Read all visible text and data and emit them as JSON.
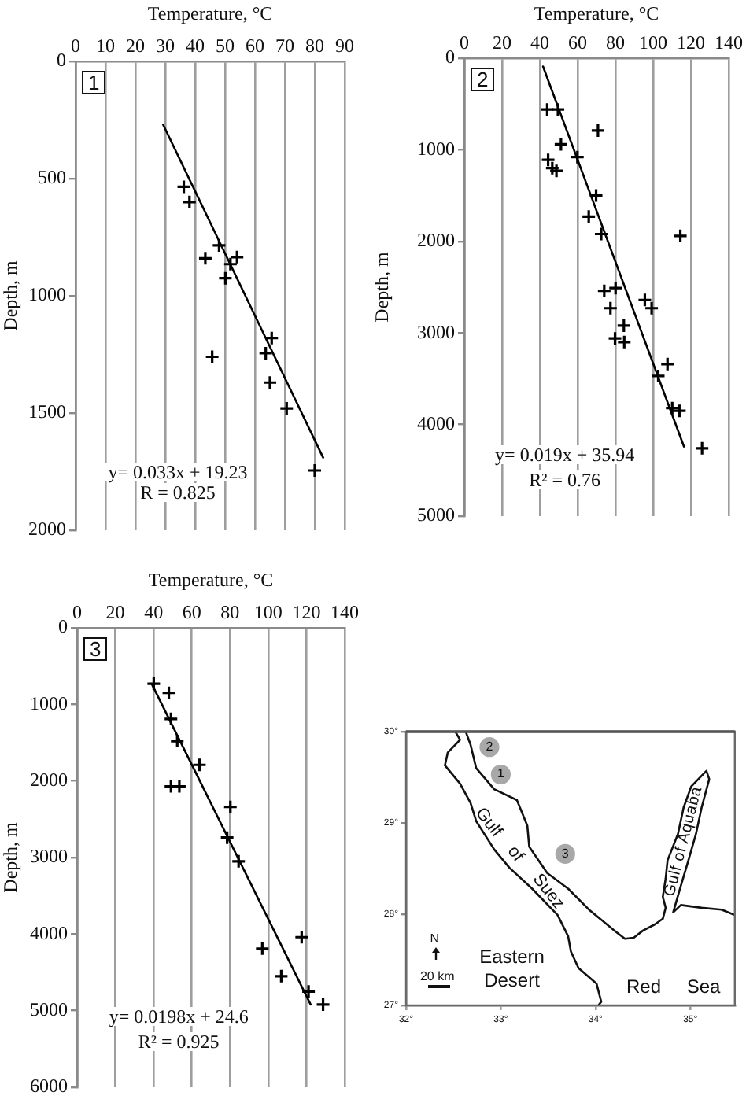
{
  "chart_data": [
    {
      "type": "scatter",
      "xlabel": "Temperature, °C",
      "ylabel": "Depth, m",
      "xlim": [
        0,
        90
      ],
      "xticks": [
        0,
        10,
        20,
        30,
        40,
        50,
        60,
        70,
        80,
        90
      ],
      "ylim": [
        2000,
        0
      ],
      "yticks": [
        0,
        500,
        1000,
        1500,
        2000
      ],
      "grid": "x",
      "marker": "cross",
      "annotations": [
        "1",
        "y= 0.033x + 19.23",
        "R = 0.825"
      ],
      "series": [
        {
          "color": "#000000",
          "x": [
            36.2,
            38.1,
            48.0,
            43.4,
            54.0,
            51.8,
            50.1,
            65.6,
            63.6,
            45.7,
            65.0,
            70.6,
            80.0
          ],
          "values": [
            535,
            600,
            785,
            840,
            835,
            865,
            925,
            1180,
            1245,
            1260,
            1370,
            1480,
            1745
          ]
        },
        {
          "type": "line",
          "color": "#000000",
          "marker": "none",
          "line_style": "solid",
          "x": [
            29.3,
            82.8
          ],
          "values": [
            270,
            1690
          ]
        }
      ]
    },
    {
      "type": "scatter",
      "xlabel": "Temperature, °C",
      "ylabel": "Depth, m",
      "xlim": [
        0,
        140
      ],
      "xticks": [
        0,
        20,
        40,
        60,
        80,
        100,
        120,
        140
      ],
      "ylim": [
        5000,
        0
      ],
      "yticks": [
        0,
        1000,
        2000,
        3000,
        4000,
        5000
      ],
      "grid": "x",
      "marker": "cross",
      "annotations": [
        "2",
        "y= 0.019x + 35.94",
        "R² = 0.76"
      ],
      "series": [
        {
          "color": "#000000",
          "x": [
            43.9,
            49.6,
            70.8,
            51.2,
            59.9,
            44.4,
            46.6,
            48.8,
            69.8,
            65.9,
            72.5,
            114.4,
            74.1,
            80.1,
            77.4,
            95.6,
            99.2,
            84.5,
            79.8,
            84.7,
            107.6,
            102.7,
            110.1,
            113.9,
            125.9
          ],
          "values": [
            560,
            560,
            790,
            940,
            1080,
            1110,
            1200,
            1230,
            1500,
            1730,
            1920,
            1940,
            2540,
            2510,
            2730,
            2640,
            2730,
            2920,
            3060,
            3100,
            3340,
            3470,
            3820,
            3850,
            4260
          ]
        },
        {
          "type": "line",
          "color": "#000000",
          "marker": "none",
          "line_style": "solid",
          "x": [
            41.7,
            116.3
          ],
          "values": [
            90,
            4240
          ]
        }
      ]
    },
    {
      "type": "scatter",
      "xlabel": "Temperature, °C",
      "ylabel": "Depth, m",
      "xlim": [
        0,
        140
      ],
      "xticks": [
        0,
        20,
        40,
        60,
        80,
        100,
        120,
        140
      ],
      "ylim": [
        6000,
        0
      ],
      "yticks": [
        0,
        1000,
        2000,
        3000,
        4000,
        5000,
        6000
      ],
      "grid": "x",
      "marker": "cross",
      "annotations": [
        "3",
        "y= 0.0198x + 24.6",
        "R² = 0.925"
      ],
      "series": [
        {
          "color": "#000000",
          "x": [
            40.1,
            48.0,
            49.1,
            52.4,
            64.0,
            49.1,
            53.5,
            80.2,
            78.5,
            84.5,
            117.5,
            96.9,
            106.8,
            121.1,
            128.7
          ],
          "values": [
            730,
            850,
            1190,
            1480,
            1790,
            2070,
            2070,
            2340,
            2740,
            3050,
            4040,
            4190,
            4550,
            4750,
            4920
          ]
        },
        {
          "type": "line",
          "color": "#000000",
          "marker": "none",
          "line_style": "solid",
          "x": [
            39.0,
            122.2
          ],
          "values": [
            730,
            4920
          ]
        }
      ]
    },
    {
      "type": "line",
      "xlim": [
        32,
        35.47
      ],
      "xticks": [
        {
          "value": 32,
          "label": "32°"
        },
        {
          "value": 33,
          "label": "33°"
        },
        {
          "value": 34,
          "label": "34°"
        },
        {
          "value": 35,
          "label": "35°"
        }
      ],
      "ylim": [
        27,
        30
      ],
      "yticks": [
        {
          "value": 27,
          "label": "27°"
        },
        {
          "value": 28,
          "label": "28°"
        },
        {
          "value": 29,
          "label": "29°"
        },
        {
          "value": 30,
          "label": "30°"
        }
      ],
      "annotations": [
        {
          "text": "1",
          "x": 33.0,
          "y": 29.53
        },
        {
          "text": "2",
          "x": 32.88,
          "y": 29.83
        },
        {
          "text": "3",
          "x": 33.68,
          "y": 28.66
        },
        "Gulf",
        "of",
        "Suez",
        "Gulf of Aquaba",
        "Eastern Desert",
        "Red Sea",
        "N",
        "20 km"
      ],
      "series": [
        {
          "color": "#111111",
          "marker": "none",
          "x": [
            32.52,
            32.57,
            32.44,
            32.41,
            32.57,
            32.68,
            32.74,
            32.93,
            33.09,
            33.33,
            33.6,
            33.71,
            33.74,
            33.82,
            34.01,
            34.06,
            34.03
          ],
          "values": [
            30.0,
            29.91,
            29.77,
            29.63,
            29.43,
            29.22,
            29.02,
            28.71,
            28.51,
            28.28,
            27.99,
            27.76,
            27.59,
            27.41,
            27.24,
            27.04,
            27.0
          ]
        },
        {
          "color": "#111111",
          "marker": "none",
          "x": [
            32.63,
            32.68,
            32.74,
            32.93,
            33.17,
            33.28,
            33.3,
            33.49,
            33.71,
            33.93,
            34.2,
            34.31,
            34.4,
            34.5,
            34.63,
            34.71,
            34.74,
            34.71,
            34.74,
            34.76,
            34.87,
            34.93,
            35.01,
            35.17,
            35.2,
            35.12,
            35.06,
            34.98,
            34.9,
            34.85,
            34.82,
            34.9,
            35.12,
            35.33,
            35.47
          ],
          "values": [
            30.0,
            29.86,
            29.6,
            29.37,
            29.25,
            28.97,
            28.74,
            28.45,
            28.28,
            28.05,
            27.82,
            27.73,
            27.74,
            27.82,
            27.89,
            27.95,
            28.07,
            28.19,
            28.39,
            28.59,
            28.88,
            29.17,
            29.4,
            29.57,
            29.48,
            29.17,
            28.88,
            28.59,
            28.31,
            28.13,
            28.02,
            28.1,
            28.07,
            28.05,
            27.99
          ]
        },
        {
          "type": "scatter",
          "color": "#a8a8a8",
          "marker": "circle",
          "x": [
            33.0,
            32.88,
            33.68
          ],
          "values": [
            29.53,
            29.83,
            28.66
          ]
        }
      ]
    }
  ]
}
